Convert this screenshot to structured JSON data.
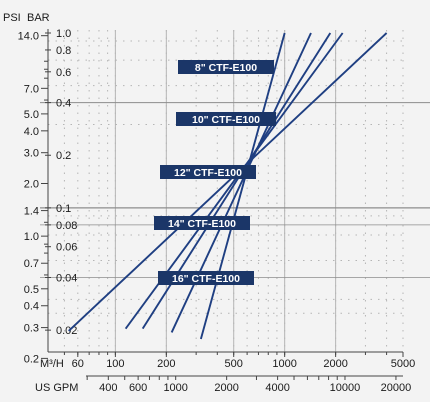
{
  "chart_data": {
    "type": "line",
    "title": "",
    "x_scale": "log",
    "y_scale": "log",
    "xlim_m3h": [
      40,
      5000
    ],
    "ylim_bar": [
      0.15,
      1.0
    ],
    "grid": true,
    "x_units": {
      "primary": "M³/H",
      "secondary": "US GPM"
    },
    "y_units": {
      "primary": "BAR",
      "secondary": "PSI"
    },
    "x_ticks_m3h": [
      "60",
      "100",
      "200",
      "500",
      "1000",
      "2000",
      "5000"
    ],
    "x_ticks_gpm": [
      "400",
      "600",
      "1000",
      "2000",
      "4000",
      "10000",
      "20000"
    ],
    "y_ticks_bar": [
      "1.0",
      "0.8",
      "0.6",
      "0.4",
      "0.2",
      "0.1",
      "0.08",
      "0.06",
      "0.04",
      "0.02"
    ],
    "y_ticks_psi": [
      "14.0",
      "7.0",
      "5.0",
      "4.0",
      "3.0",
      "2.0",
      "1.4",
      "1.0",
      "0.7",
      "0.5",
      "0.4",
      "0.3",
      "0.2"
    ],
    "series": [
      {
        "name": "8\" CTF-E100",
        "points": [
          {
            "x": 320,
            "y": 0.0178
          },
          {
            "x": 1000,
            "y": 1.0
          }
        ]
      },
      {
        "name": "10\" CTF-E100",
        "points": [
          {
            "x": 215,
            "y": 0.0194
          },
          {
            "x": 1430,
            "y": 1.0
          }
        ]
      },
      {
        "name": "12\" CTF-E100",
        "points": [
          {
            "x": 145,
            "y": 0.0204
          },
          {
            "x": 1860,
            "y": 1.0
          }
        ]
      },
      {
        "name": "14\" CTF-E100",
        "points": [
          {
            "x": 115,
            "y": 0.0204
          },
          {
            "x": 2200,
            "y": 1.0
          }
        ]
      },
      {
        "name": "16\" CTF-E100",
        "points": [
          {
            "x": 53,
            "y": 0.0198
          },
          {
            "x": 4000,
            "y": 1.0
          }
        ]
      }
    ]
  },
  "colors": {
    "line": "#1f3f82",
    "label_bg": "#1b3668",
    "background": "#f3f3f3",
    "grid_major": "#8c8c8c",
    "grid_minor": "#b5b5b5"
  }
}
